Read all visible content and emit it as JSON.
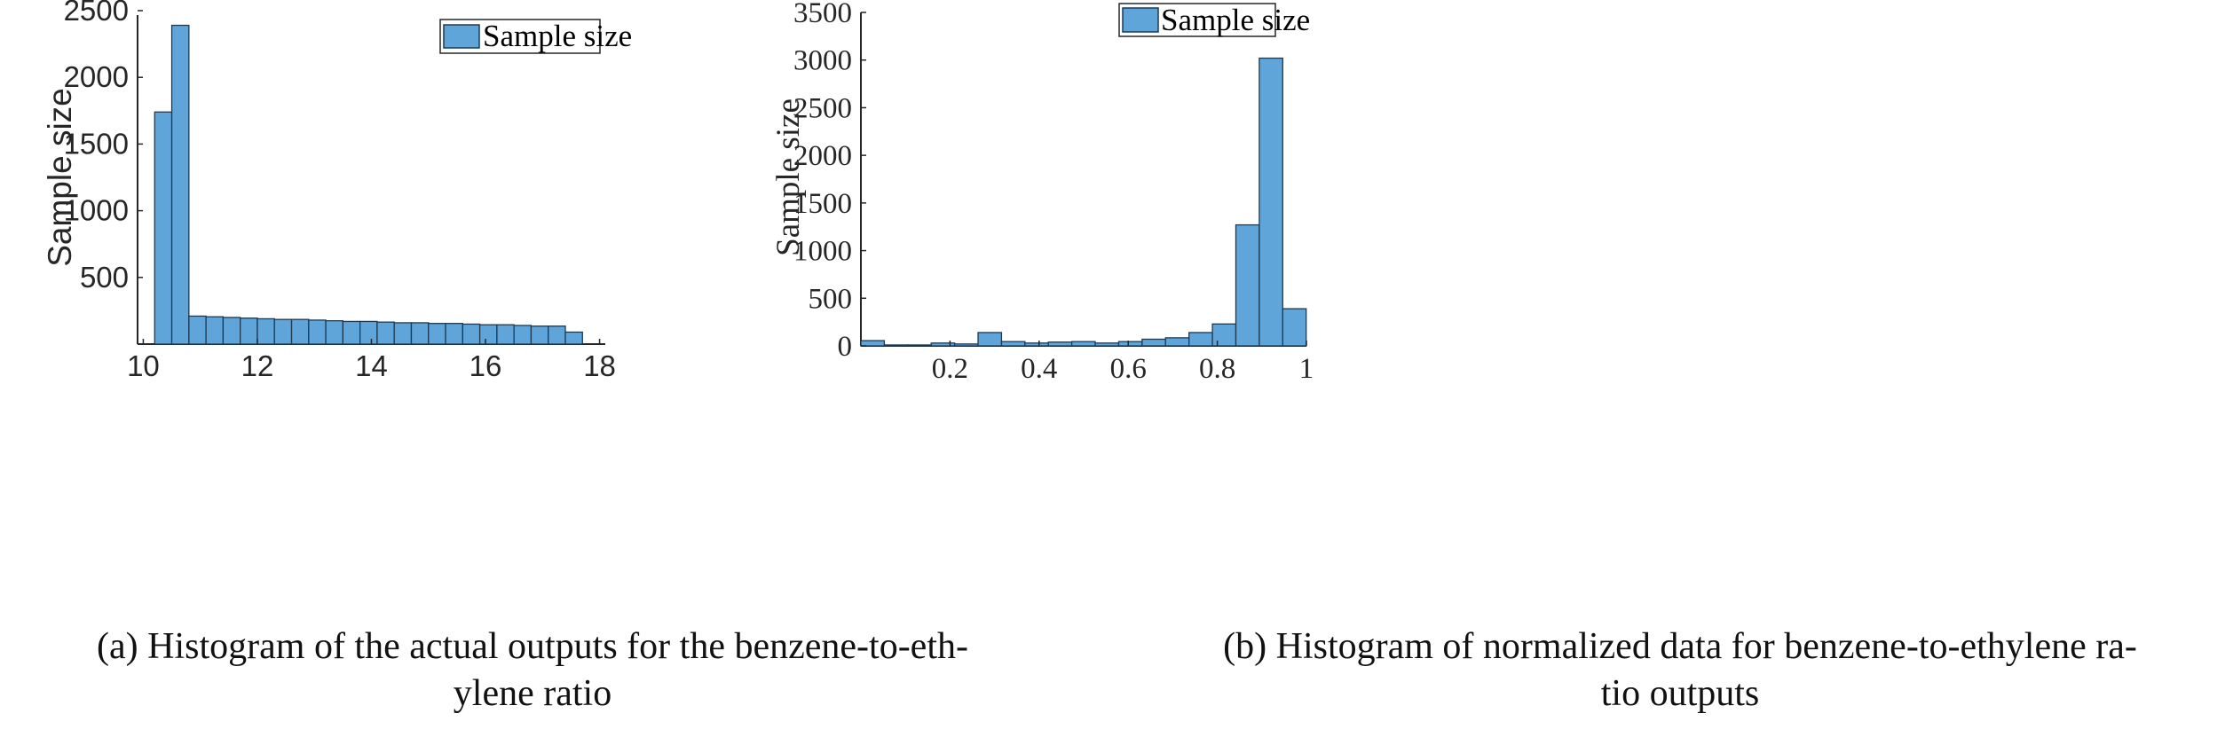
{
  "chart_data": [
    {
      "type": "bar",
      "caption": "(a) Histogram of the actual outputs for the benzene-to-ethylene ratio",
      "caption_lines": [
        "(a) Histogram of the actual outputs for the benzene-to-eth-",
        "ylene ratio"
      ],
      "ylabel": "Sample size",
      "xlabel": "",
      "legend": {
        "label": "Sample size",
        "position": "top-right"
      },
      "xlim": [
        9.9,
        18.1
      ],
      "ylim": [
        0,
        2500
      ],
      "xticks": [
        "10",
        "12",
        "14",
        "16",
        "18"
      ],
      "yticks": [
        "500",
        "1000",
        "1500",
        "2000",
        "2500"
      ],
      "bin_start": 10.2,
      "bin_width": 0.3,
      "values": [
        1740,
        2390,
        210,
        205,
        200,
        195,
        190,
        185,
        185,
        180,
        175,
        170,
        170,
        165,
        160,
        160,
        155,
        155,
        150,
        145,
        145,
        140,
        135,
        135,
        90
      ],
      "bar_color": "#5fa5d9"
    },
    {
      "type": "bar",
      "caption": "(b) Histogram of normalized data for benzene-to-ethylene ratio outputs",
      "caption_lines": [
        "(b) Histogram of normalized data for benzene-to-ethylene ra-",
        "tio outputs"
      ],
      "ylabel": "Sample size",
      "xlabel": "",
      "legend": {
        "label": "Sample size",
        "position": "top-right"
      },
      "xlim": [
        0.0,
        1.0
      ],
      "ylim": [
        0,
        3500
      ],
      "xticks": [
        "0.2",
        "0.4",
        "0.6",
        "0.8",
        "1"
      ],
      "yticks": [
        "0",
        "500",
        "1000",
        "1500",
        "2000",
        "2500",
        "3000",
        "3500"
      ],
      "bin_start": 0.0,
      "bin_width": 0.0526,
      "values": [
        55,
        10,
        10,
        30,
        20,
        140,
        45,
        30,
        40,
        45,
        30,
        45,
        70,
        85,
        140,
        230,
        1270,
        3020,
        390
      ],
      "bar_color": "#5fa5d9"
    }
  ]
}
